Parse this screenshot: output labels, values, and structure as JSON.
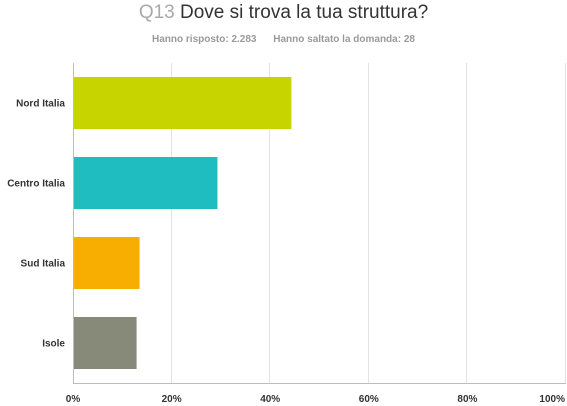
{
  "header": {
    "question_number": "Q13",
    "question_text": "Dove si trova la tua struttura?",
    "answered": "Hanno risposto: 2.283",
    "skipped": "Hanno saltato la domanda: 28"
  },
  "chart_data": {
    "type": "bar",
    "orientation": "horizontal",
    "title": "",
    "xlabel": "",
    "ylabel": "",
    "categories": [
      "Nord Italia",
      "Centro Italia",
      "Sud Italia",
      "Isole"
    ],
    "values": [
      44.3,
      29.3,
      13.5,
      12.9
    ],
    "colors": [
      "#c8d400",
      "#1fbcc0",
      "#f7ae00",
      "#878a79"
    ],
    "xlim": [
      0,
      100
    ],
    "ticks": [
      0,
      20,
      40,
      60,
      80,
      100
    ],
    "tick_labels": [
      "0%",
      "20%",
      "40%",
      "60%",
      "80%",
      "100%"
    ],
    "grid": true,
    "legend": "none"
  }
}
